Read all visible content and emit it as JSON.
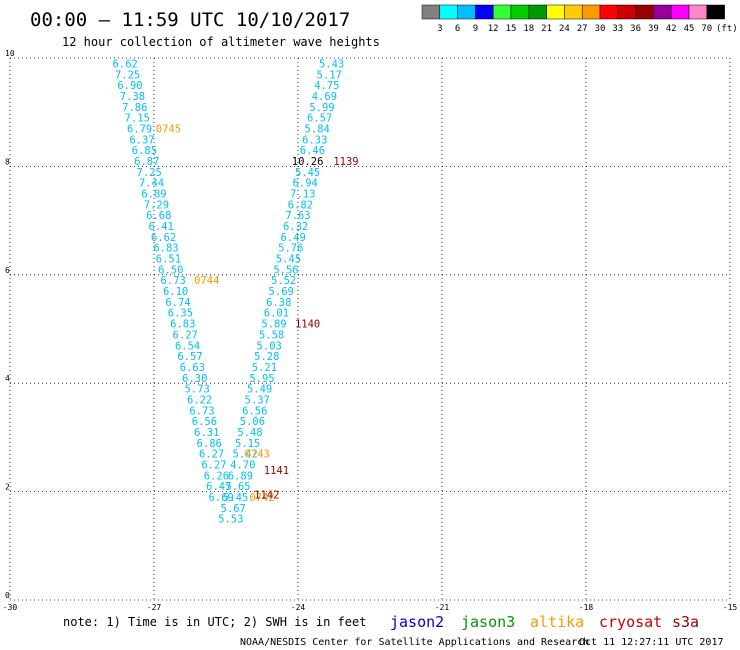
{
  "header": {
    "title": "00:00 – 11:59 UTC 10/10/2017",
    "subtitle": "12 hour collection of altimeter wave heights"
  },
  "colorbar": {
    "labels": [
      "3",
      "6",
      "9",
      "12",
      "15",
      "18",
      "21",
      "24",
      "27",
      "30",
      "33",
      "36",
      "39",
      "42",
      "45",
      "70"
    ],
    "unit": "(ft)",
    "colors": [
      "#808080",
      "#00ffff",
      "#00bfff",
      "#0000ff",
      "#33ff33",
      "#00cc00",
      "#009900",
      "#ffff00",
      "#ffcc00",
      "#ff9900",
      "#ff0000",
      "#cc0000",
      "#990000",
      "#990099",
      "#ff00ff",
      "#ff88cc",
      "#000000"
    ]
  },
  "footer": {
    "note": "note: 1) Time is in UTC; 2) SWH is in feet",
    "credit": "NOAA/NESDIS Center for Satellite Applications and Research",
    "timestamp": "Oct 11 12:27:11 UTC 2017"
  },
  "legend": [
    {
      "name": "jason2",
      "color": "#0000cc"
    },
    {
      "name": "jason3",
      "color": "#009900"
    },
    {
      "name": "altika",
      "color": "#ff9900"
    },
    {
      "name": "cryosat",
      "color": "#cc0000"
    },
    {
      "name": "s3a",
      "color": "#990000"
    }
  ],
  "chart_data": {
    "type": "scatter",
    "xlim": [
      -30,
      -15
    ],
    "ylim": [
      0,
      10
    ],
    "xticks": [
      -30,
      -27,
      -24,
      -21,
      -18,
      -15
    ],
    "yticks": [
      0,
      2,
      4,
      6,
      8,
      10
    ],
    "grid": true,
    "series": [
      {
        "color": "#00bfff",
        "points": [
          {
            "x": -27.6,
            "y": 9.9,
            "v": "6.62"
          },
          {
            "x": -27.55,
            "y": 9.7,
            "v": "7.25"
          },
          {
            "x": -27.5,
            "y": 9.5,
            "v": "6.90"
          },
          {
            "x": -27.45,
            "y": 9.3,
            "v": "7.38"
          },
          {
            "x": -27.4,
            "y": 9.1,
            "v": "7.86"
          },
          {
            "x": -27.35,
            "y": 8.9,
            "v": "7.15"
          },
          {
            "x": -27.3,
            "y": 8.7,
            "v": "6.79"
          },
          {
            "x": -27.25,
            "y": 8.5,
            "v": "6.37"
          },
          {
            "x": -27.2,
            "y": 8.3,
            "v": "6.85"
          },
          {
            "x": -27.15,
            "y": 8.1,
            "v": "6.87"
          },
          {
            "x": -27.1,
            "y": 7.9,
            "v": "7.25"
          },
          {
            "x": -27.05,
            "y": 7.7,
            "v": "7.44"
          },
          {
            "x": -27.0,
            "y": 7.5,
            "v": "6.89"
          },
          {
            "x": -26.95,
            "y": 7.3,
            "v": "7.29"
          },
          {
            "x": -26.9,
            "y": 7.1,
            "v": "6.68"
          },
          {
            "x": -26.85,
            "y": 6.9,
            "v": "6.41"
          },
          {
            "x": -26.8,
            "y": 6.7,
            "v": "6.62"
          },
          {
            "x": -26.75,
            "y": 6.5,
            "v": "6.83"
          },
          {
            "x": -26.7,
            "y": 6.3,
            "v": "6.51"
          },
          {
            "x": -26.65,
            "y": 6.1,
            "v": "6.50"
          },
          {
            "x": -26.6,
            "y": 5.9,
            "v": "6.73"
          },
          {
            "x": -26.55,
            "y": 5.7,
            "v": "6.10"
          },
          {
            "x": -26.5,
            "y": 5.5,
            "v": "6.74"
          },
          {
            "x": -26.45,
            "y": 5.3,
            "v": "6.35"
          },
          {
            "x": -26.4,
            "y": 5.1,
            "v": "6.83"
          },
          {
            "x": -26.35,
            "y": 4.9,
            "v": "6.27"
          },
          {
            "x": -26.3,
            "y": 4.7,
            "v": "6.54"
          },
          {
            "x": -26.25,
            "y": 4.5,
            "v": "6.57"
          },
          {
            "x": -26.2,
            "y": 4.3,
            "v": "6.63"
          },
          {
            "x": -26.15,
            "y": 4.1,
            "v": "6.30"
          },
          {
            "x": -26.1,
            "y": 3.9,
            "v": "5.73"
          },
          {
            "x": -26.05,
            "y": 3.7,
            "v": "6.22"
          },
          {
            "x": -26.0,
            "y": 3.5,
            "v": "6.73"
          },
          {
            "x": -25.95,
            "y": 3.3,
            "v": "6.56"
          },
          {
            "x": -25.9,
            "y": 3.1,
            "v": "6.31"
          },
          {
            "x": -25.85,
            "y": 2.9,
            "v": "6.86"
          },
          {
            "x": -25.8,
            "y": 2.7,
            "v": "6.27"
          },
          {
            "x": -25.75,
            "y": 2.5,
            "v": "6.27"
          },
          {
            "x": -25.7,
            "y": 2.3,
            "v": "6.26"
          },
          {
            "x": -25.65,
            "y": 2.1,
            "v": "6.47"
          },
          {
            "x": -25.6,
            "y": 1.9,
            "v": "6.69"
          }
        ]
      },
      {
        "color": "#00bfff",
        "points": [
          {
            "x": -23.3,
            "y": 9.9,
            "v": "5.43"
          },
          {
            "x": -23.35,
            "y": 9.7,
            "v": "5.17"
          },
          {
            "x": -23.4,
            "y": 9.5,
            "v": "4.75"
          },
          {
            "x": -23.45,
            "y": 9.3,
            "v": "4.69"
          },
          {
            "x": -23.5,
            "y": 9.1,
            "v": "5.99"
          },
          {
            "x": -23.55,
            "y": 8.9,
            "v": "6.57"
          },
          {
            "x": -23.6,
            "y": 8.7,
            "v": "5.84"
          },
          {
            "x": -23.65,
            "y": 8.5,
            "v": "6.33"
          },
          {
            "x": -23.7,
            "y": 8.3,
            "v": "6.46"
          },
          {
            "x": -23.8,
            "y": 7.9,
            "v": "5.45"
          },
          {
            "x": -23.85,
            "y": 7.7,
            "v": "6.94"
          },
          {
            "x": -23.9,
            "y": 7.5,
            "v": "7.13"
          },
          {
            "x": -23.95,
            "y": 7.3,
            "v": "6.82"
          },
          {
            "x": -24.0,
            "y": 7.1,
            "v": "7.63"
          },
          {
            "x": -24.05,
            "y": 6.9,
            "v": "6.32"
          },
          {
            "x": -24.1,
            "y": 6.7,
            "v": "6.49"
          },
          {
            "x": -24.15,
            "y": 6.5,
            "v": "5.76"
          },
          {
            "x": -24.2,
            "y": 6.3,
            "v": "5.45"
          },
          {
            "x": -24.25,
            "y": 6.1,
            "v": "5.56"
          },
          {
            "x": -24.3,
            "y": 5.9,
            "v": "5.52"
          },
          {
            "x": -24.35,
            "y": 5.7,
            "v": "5.69"
          },
          {
            "x": -24.4,
            "y": 5.5,
            "v": "6.38"
          },
          {
            "x": -24.45,
            "y": 5.3,
            "v": "6.01"
          },
          {
            "x": -24.5,
            "y": 5.1,
            "v": "5.89"
          },
          {
            "x": -24.55,
            "y": 4.9,
            "v": "5.58"
          },
          {
            "x": -24.6,
            "y": 4.7,
            "v": "5.03"
          },
          {
            "x": -24.65,
            "y": 4.5,
            "v": "5.28"
          },
          {
            "x": -24.7,
            "y": 4.3,
            "v": "5.21"
          },
          {
            "x": -24.75,
            "y": 4.1,
            "v": "5.95"
          },
          {
            "x": -24.8,
            "y": 3.9,
            "v": "5.49"
          },
          {
            "x": -24.85,
            "y": 3.7,
            "v": "5.37"
          },
          {
            "x": -24.9,
            "y": 3.5,
            "v": "6.56"
          },
          {
            "x": -24.95,
            "y": 3.3,
            "v": "5.06"
          },
          {
            "x": -25.0,
            "y": 3.1,
            "v": "5.48"
          },
          {
            "x": -25.05,
            "y": 2.9,
            "v": "5.15"
          },
          {
            "x": -25.1,
            "y": 2.7,
            "v": "5.42"
          },
          {
            "x": -25.15,
            "y": 2.5,
            "v": "4.70"
          },
          {
            "x": -25.2,
            "y": 2.3,
            "v": "6.89"
          },
          {
            "x": -25.25,
            "y": 2.1,
            "v": "5.65"
          },
          {
            "x": -25.3,
            "y": 1.9,
            "v": "5.45"
          },
          {
            "x": -25.35,
            "y": 1.7,
            "v": "5.67"
          },
          {
            "x": -25.4,
            "y": 1.5,
            "v": "5.53"
          }
        ]
      },
      {
        "color": "#000000",
        "points": [
          {
            "x": -23.8,
            "y": 8.1,
            "v": "10.26"
          }
        ]
      },
      {
        "color": "#ff9900",
        "points": [
          {
            "x": -26.7,
            "y": 8.7,
            "v": "0745"
          },
          {
            "x": -25.9,
            "y": 5.9,
            "v": "0744"
          },
          {
            "x": -24.85,
            "y": 2.7,
            "v": "0743"
          },
          {
            "x": -24.75,
            "y": 1.9,
            "v": "0742"
          }
        ]
      },
      {
        "color": "#990000",
        "points": [
          {
            "x": -23.0,
            "y": 8.1,
            "v": "1139"
          },
          {
            "x": -23.8,
            "y": 5.1,
            "v": "1140"
          },
          {
            "x": -24.45,
            "y": 2.4,
            "v": "1141"
          },
          {
            "x": -24.65,
            "y": 1.95,
            "v": "1142"
          }
        ]
      }
    ]
  }
}
